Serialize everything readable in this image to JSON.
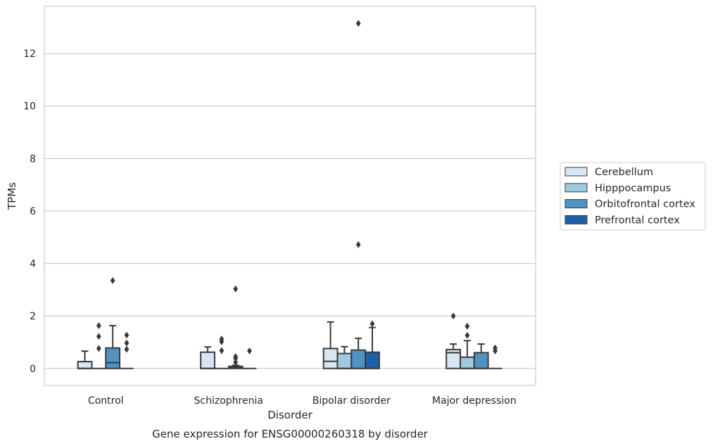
{
  "chart_data": {
    "type": "box",
    "title": "Gene expression for ENSG00000260318 by disorder",
    "xlabel": "Disorder",
    "ylabel": "TPMs",
    "ylim": [
      -0.65,
      13.8
    ],
    "yticks": [
      0,
      2,
      4,
      6,
      8,
      10,
      12
    ],
    "grid": "horizontal",
    "legend_position": "right",
    "categories": [
      "Control",
      "Schizophrenia",
      "Bipolar disorder",
      "Major depression"
    ],
    "colors": {
      "Cerebellum": "#d6e6f4",
      "Hipppocampus": "#9ecae1",
      "Orbitofrontal cortex": "#4f93c3",
      "Prefrontal cortex": "#2060a8",
      "grid": "#cccccc",
      "outline": "#3a3a3a"
    },
    "series": [
      {
        "name": "Cerebellum",
        "boxes": [
          {
            "q1": 0,
            "median": 0,
            "q3": 0.26,
            "whislo": 0,
            "whishi": 0.66,
            "fliers": []
          },
          {
            "q1": 0,
            "median": 0,
            "q3": 0.62,
            "whislo": 0,
            "whishi": 0.82,
            "fliers": []
          },
          {
            "q1": 0,
            "median": 0.27,
            "q3": 0.76,
            "whislo": 0,
            "whishi": 1.77,
            "fliers": []
          },
          {
            "q1": 0,
            "median": 0.6,
            "q3": 0.72,
            "whislo": 0,
            "whishi": 0.93,
            "fliers": [
              2.0
            ]
          }
        ]
      },
      {
        "name": "Hipppocampus",
        "boxes": [
          {
            "q1": 0,
            "median": 0,
            "q3": 0,
            "whislo": 0,
            "whishi": 0,
            "fliers": [
              0.76,
              1.22,
              1.63
            ]
          },
          {
            "q1": 0,
            "median": 0,
            "q3": 0,
            "whislo": 0,
            "whishi": 0,
            "fliers": [
              0.68,
              1.02,
              1.12
            ]
          },
          {
            "q1": 0,
            "median": 0,
            "q3": 0.57,
            "whislo": 0,
            "whishi": 0.83,
            "fliers": []
          },
          {
            "q1": 0,
            "median": 0,
            "q3": 0.43,
            "whislo": 0,
            "whishi": 1.06,
            "fliers": [
              1.26,
              1.61
            ]
          }
        ]
      },
      {
        "name": "Orbitofrontal cortex",
        "boxes": [
          {
            "q1": 0,
            "median": 0.22,
            "q3": 0.78,
            "whislo": 0,
            "whishi": 1.63,
            "fliers": [
              3.35
            ]
          },
          {
            "q1": 0,
            "median": 0.05,
            "q3": 0.08,
            "whislo": 0,
            "whishi": 0.12,
            "fliers": [
              0.23,
              0.38,
              0.45,
              3.03
            ]
          },
          {
            "q1": 0,
            "median": 0,
            "q3": 0.7,
            "whislo": 0,
            "whishi": 1.15,
            "fliers": [
              4.72,
              13.15
            ]
          },
          {
            "q1": 0,
            "median": 0,
            "q3": 0.6,
            "whislo": 0,
            "whishi": 0.93,
            "fliers": []
          }
        ]
      },
      {
        "name": "Prefrontal cortex",
        "boxes": [
          {
            "q1": 0,
            "median": 0,
            "q3": 0,
            "whislo": 0,
            "whishi": 0,
            "fliers": [
              0.73,
              0.97,
              1.27
            ]
          },
          {
            "q1": 0,
            "median": 0,
            "q3": 0,
            "whislo": 0,
            "whishi": 0,
            "fliers": [
              0.67
            ]
          },
          {
            "q1": 0,
            "median": 0,
            "q3": 0.62,
            "whislo": 0,
            "whishi": 1.56,
            "fliers": [
              1.7
            ]
          },
          {
            "q1": 0,
            "median": 0,
            "q3": 0,
            "whislo": 0,
            "whishi": 0,
            "fliers": [
              0.67,
              0.78
            ]
          }
        ]
      }
    ]
  }
}
